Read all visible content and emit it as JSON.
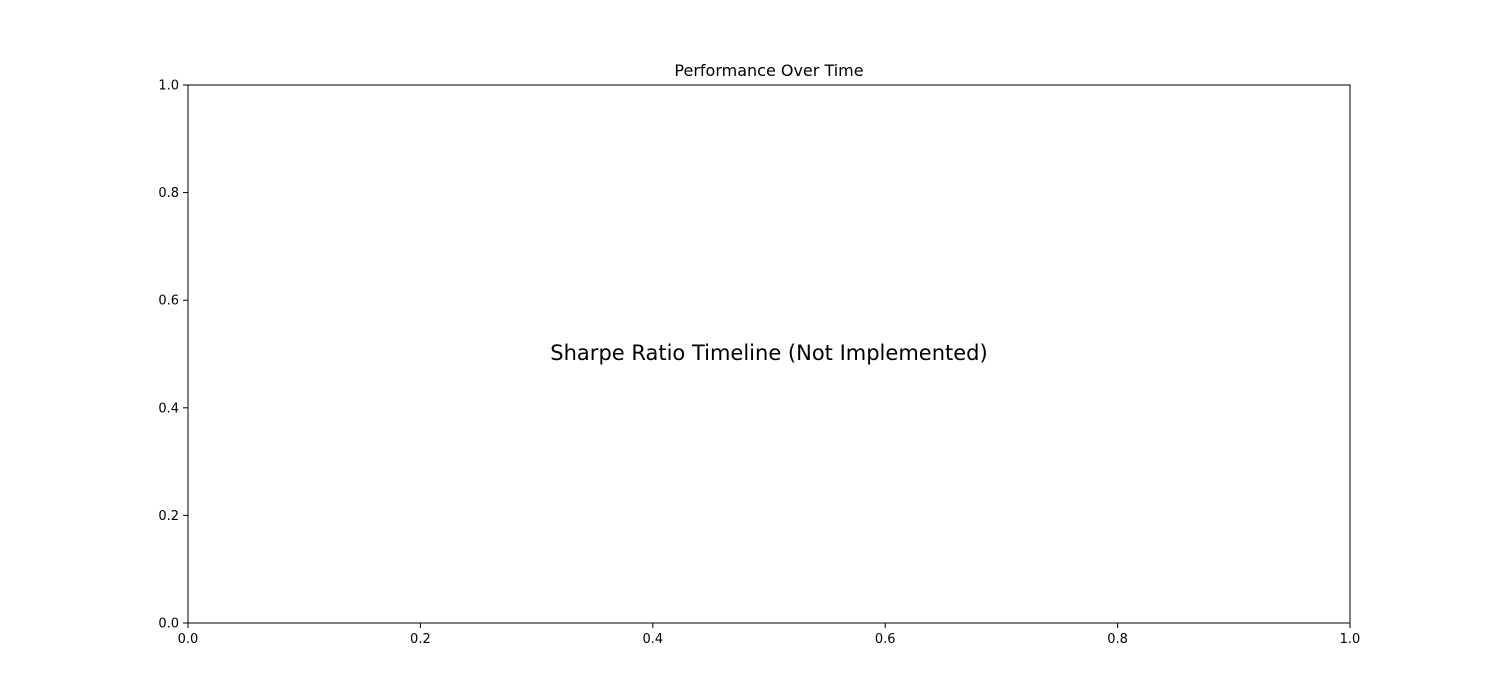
{
  "chart_data": {
    "type": "line",
    "title": "Performance Over Time",
    "xlabel": "",
    "ylabel": "",
    "xlim": [
      0,
      1
    ],
    "ylim": [
      0,
      1
    ],
    "x_ticks": [
      0.0,
      0.2,
      0.4,
      0.6,
      0.8,
      1.0
    ],
    "y_ticks": [
      0.0,
      0.2,
      0.4,
      0.6,
      0.8,
      1.0
    ],
    "x_tick_labels": [
      "0.0",
      "0.2",
      "0.4",
      "0.6",
      "0.8",
      "1.0"
    ],
    "y_tick_labels": [
      "0.0",
      "0.2",
      "0.4",
      "0.6",
      "0.8",
      "1.0"
    ],
    "grid": false,
    "series": [],
    "annotations": [
      {
        "text": "Sharpe Ratio Timeline (Not Implemented)",
        "x": 0.5,
        "y": 0.5
      }
    ]
  }
}
